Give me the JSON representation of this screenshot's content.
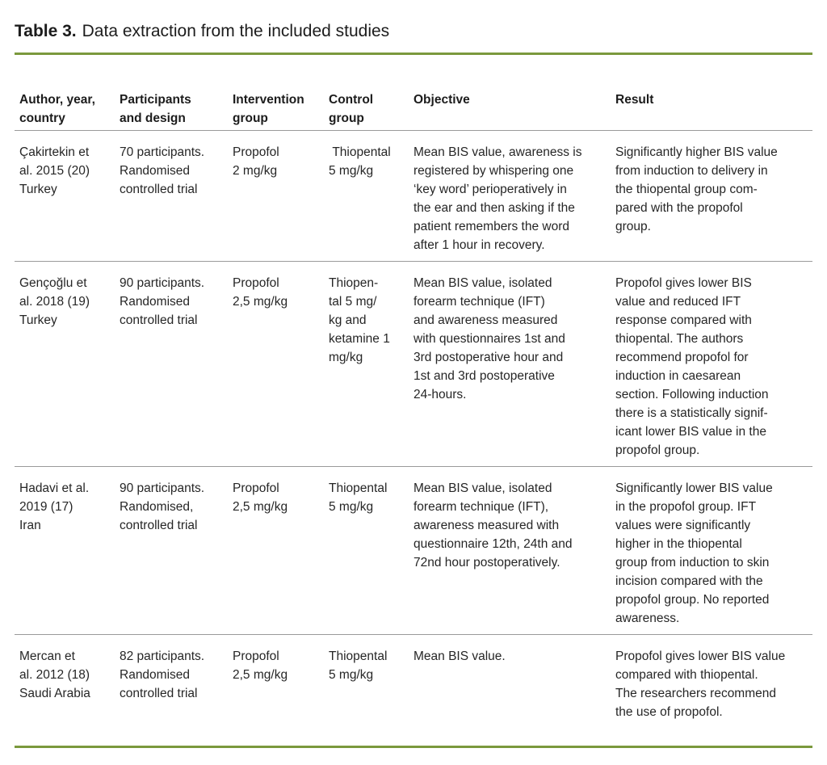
{
  "title": {
    "label": "Table 3.",
    "text": "Data extraction from the included studies"
  },
  "colors": {
    "accent_olive_green": "#7b993d",
    "separator_gray": "#9a9a9a",
    "text": "#262626"
  },
  "table": {
    "columns": [
      {
        "label": "Author, year,\ncountry"
      },
      {
        "label": "Participants\nand design"
      },
      {
        "label": "Intervention\ngroup"
      },
      {
        "label": "Control\ngroup"
      },
      {
        "label": "Objective"
      },
      {
        "label": "Result"
      }
    ],
    "rows": [
      {
        "author": "Çakirtekin et\nal. 2015 (20)\nTurkey",
        "participants": "70 participants.\nRandomised\ncontrolled trial",
        "intervention": "Propofol\n2 mg/kg",
        "control": " Thiopental\n5 mg/kg",
        "objective": "Mean BIS value, awareness is\nregistered by whispering one\n‘key word’ perioperatively in\nthe ear and then asking if the\npatient remembers the word\nafter 1 hour in recovery.",
        "result": "Significantly higher BIS value\nfrom induction to delivery in\nthe thiopental group com-\npared with the propofol\ngroup."
      },
      {
        "author": "Gençoğlu et\nal. 2018 (19)\nTurkey",
        "participants": "90 participants.\nRandomised\ncontrolled trial",
        "intervention": "Propofol\n2,5 mg/kg",
        "control": "Thiopen-\ntal 5 mg/\nkg and\nketamine 1\nmg/kg",
        "objective": "Mean BIS value, isolated\nforearm technique (IFT)\nand awareness measured\nwith questionnaires 1st and\n3rd postoperative hour and\n1st and 3rd postoperative\n24-hours.",
        "result": "Propofol gives lower BIS\nvalue and reduced IFT\nresponse compared with\nthiopental. The authors\nrecommend propofol for\ninduction in caesarean\nsection. Following induction\nthere is a statistically signif-\nicant lower BIS value in the\npropofol group."
      },
      {
        "author": "Hadavi et al.\n2019 (17)\nIran",
        "participants": "90 participants.\nRandomised,\ncontrolled trial",
        "intervention": "Propofol\n2,5 mg/kg",
        "control": "Thiopental\n5 mg/kg",
        "objective": "Mean BIS value, isolated\nforearm technique (IFT),\nawareness measured with\nquestionnaire 12th, 24th and\n72nd hour postoperatively.",
        "result": "Significantly lower BIS value\nin the propofol group. IFT\nvalues were significantly\nhigher in the thiopental\ngroup from induction to skin\nincision compared with the\npropofol group. No reported\nawareness."
      },
      {
        "author": "Mercan et\nal. 2012 (18)\nSaudi Arabia",
        "participants": "82 participants.\nRandomised\ncontrolled trial",
        "intervention": "Propofol\n2,5 mg/kg",
        "control": "Thiopental\n5 mg/kg",
        "objective": "Mean BIS value.",
        "result": "Propofol gives lower BIS value\ncompared with thiopental.\nThe researchers recommend\nthe use of propofol."
      }
    ]
  }
}
